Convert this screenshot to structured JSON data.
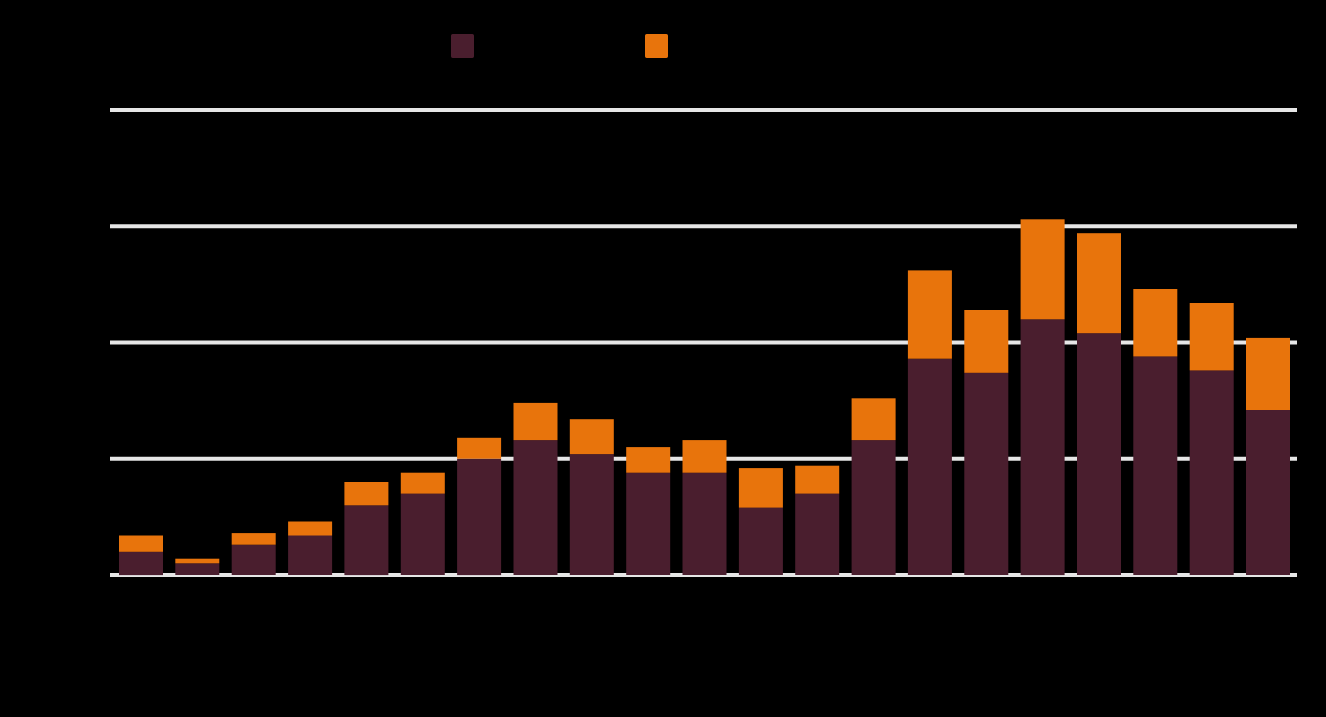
{
  "chart_data": {
    "type": "bar",
    "stacked": true,
    "categories": [
      "",
      "",
      "",
      "",
      "",
      "",
      "",
      "",
      "",
      "",
      "",
      "",
      "",
      "",
      "",
      "",
      "",
      "",
      "",
      "",
      ""
    ],
    "series": [
      {
        "color": "#4a1e2e",
        "values": [
          10,
          5,
          13,
          17,
          30,
          35,
          50,
          58,
          52,
          44,
          44,
          29,
          35,
          58,
          93,
          87,
          110,
          104,
          94,
          88,
          71
        ]
      },
      {
        "color": "#e8740c",
        "values": [
          7,
          2,
          5,
          6,
          10,
          9,
          9,
          16,
          15,
          11,
          14,
          17,
          12,
          18,
          38,
          27,
          43,
          43,
          29,
          29,
          31
        ]
      }
    ],
    "ylim": [
      0,
      200
    ],
    "gridlines": [
      0,
      50,
      100,
      150,
      200
    ],
    "grid": true,
    "gridline_color": "#e6e6e6",
    "legend_position": "top-center",
    "background": "#000000"
  }
}
